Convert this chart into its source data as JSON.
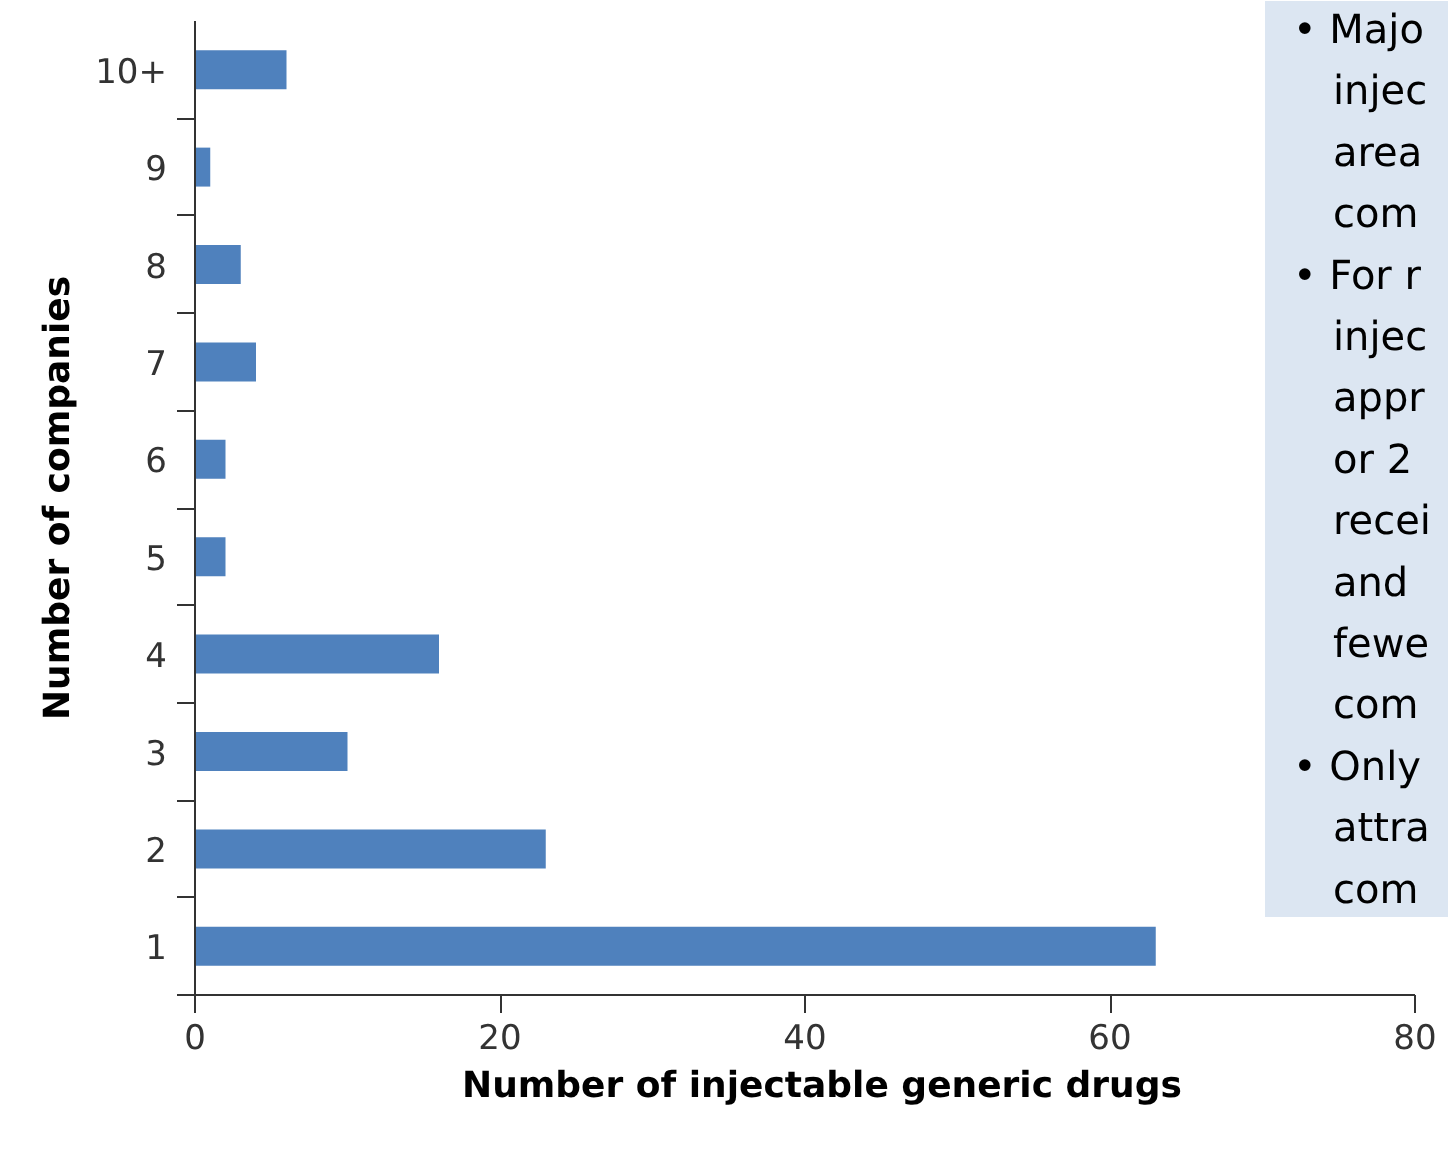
{
  "chart_data": {
    "type": "bar",
    "orientation": "horizontal",
    "categories": [
      "10+",
      "9",
      "8",
      "7",
      "6",
      "5",
      "4",
      "3",
      "2",
      "1"
    ],
    "values": [
      6,
      1,
      3,
      4,
      2,
      2,
      16,
      10,
      23,
      63
    ],
    "color": "#4f81bd",
    "xlabel": "Number of injectable generic drugs",
    "ylabel": "Number of companies",
    "xlim": [
      0,
      80
    ],
    "xticks": [
      0,
      20,
      40,
      60,
      80
    ],
    "annotations": [
      "• Majo\ninjec\narea\ncom",
      "• For r\ninjec\nappr\nor 2\nrecei\nand\nfewe\ncom",
      "• Only\nattra\ncom"
    ]
  }
}
